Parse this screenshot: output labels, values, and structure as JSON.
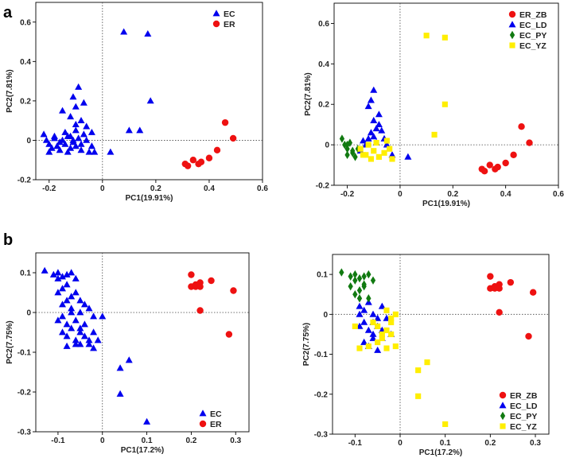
{
  "figure": {
    "panel_letters": [
      "a",
      "b"
    ]
  },
  "colors": {
    "EC": "#0000ee",
    "ER": "#ee1111",
    "EC_PY": "#117a11",
    "EC_YZ": "#ffee00",
    "ER_ZB": "#ee1111",
    "EC_LD": "#0000ee"
  },
  "chart_data": [
    {
      "id": "a-left",
      "type": "scatter",
      "xlabel": "PC1(19.91%)",
      "ylabel": "PC2(7.81%)",
      "xlim": [
        -0.25,
        0.6
      ],
      "ylim": [
        -0.2,
        0.7
      ],
      "xticks": [
        -0.2,
        0,
        0.2,
        0.4,
        0.6
      ],
      "xtick_labels": [
        "-0.2",
        "0",
        "0.2",
        "0.4",
        "0.6"
      ],
      "yticks": [
        -0.2,
        0,
        0.2,
        0.4,
        0.6
      ],
      "ytick_labels": [
        "-0.2",
        "0",
        "0.2",
        "0.4",
        "0.6"
      ],
      "legend": {
        "position": "top-right",
        "entries": [
          {
            "name": "EC",
            "marker": "triangle",
            "color": "#0000ee"
          },
          {
            "name": "ER",
            "marker": "circle",
            "color": "#ee1111"
          }
        ]
      },
      "series": [
        {
          "name": "EC",
          "marker": "triangle",
          "color": "#0000ee",
          "x": [
            -0.22,
            -0.21,
            -0.2,
            -0.19,
            -0.18,
            -0.17,
            -0.16,
            -0.15,
            -0.14,
            -0.13,
            -0.12,
            -0.11,
            -0.1,
            -0.09,
            -0.08,
            -0.07,
            -0.2,
            -0.18,
            -0.16,
            -0.14,
            -0.12,
            -0.1,
            -0.08,
            -0.06,
            -0.05,
            -0.04,
            -0.12,
            -0.1,
            -0.08,
            -0.06,
            -0.04,
            -0.11,
            -0.09,
            -0.07,
            -0.15,
            -0.13,
            -0.11,
            -0.1,
            -0.03,
            0.03,
            0.08,
            0.1,
            0.17,
            0.18,
            0.14
          ],
          "y": [
            0.03,
            0.0,
            -0.02,
            -0.04,
            0.01,
            -0.03,
            -0.05,
            0.0,
            -0.02,
            -0.06,
            0.02,
            0.0,
            -0.03,
            0.01,
            -0.05,
            0.03,
            -0.06,
            0.02,
            -0.01,
            0.04,
            -0.04,
            0.05,
            -0.02,
            0.0,
            -0.06,
            -0.03,
            0.12,
            0.08,
            0.1,
            0.07,
            0.04,
            0.22,
            0.27,
            0.19,
            0.15,
            0.02,
            -0.01,
            0.17,
            -0.06,
            -0.06,
            0.55,
            0.05,
            0.54,
            0.2,
            0.05
          ]
        },
        {
          "name": "ER",
          "marker": "circle",
          "color": "#ee1111",
          "x": [
            0.31,
            0.32,
            0.34,
            0.36,
            0.37,
            0.4,
            0.43,
            0.46,
            0.49
          ],
          "y": [
            -0.12,
            -0.13,
            -0.1,
            -0.12,
            -0.11,
            -0.09,
            -0.05,
            0.09,
            0.01
          ]
        }
      ]
    },
    {
      "id": "a-right",
      "type": "scatter",
      "xlabel": "PC1(19.91%)",
      "ylabel": "PC2(7.81%)",
      "xlim": [
        -0.25,
        0.6
      ],
      "ylim": [
        -0.2,
        0.7
      ],
      "xticks": [
        -0.2,
        0,
        0.2,
        0.4,
        0.6
      ],
      "xtick_labels": [
        "-0.2",
        "0",
        "0.2",
        "0.4",
        "0.6"
      ],
      "yticks": [
        -0.2,
        0,
        0.2,
        0.4,
        0.6
      ],
      "ytick_labels": [
        "-0.2",
        "0",
        "0.2",
        "0.4",
        "0.6"
      ],
      "legend": {
        "position": "top-right",
        "entries": [
          {
            "name": "ER_ZB",
            "marker": "circle",
            "color": "#ee1111"
          },
          {
            "name": "EC_LD",
            "marker": "triangle",
            "color": "#0000ee"
          },
          {
            "name": "EC_PY",
            "marker": "diamond",
            "color": "#117a11"
          },
          {
            "name": "EC_YZ",
            "marker": "square",
            "color": "#ffee00"
          }
        ]
      },
      "series": [
        {
          "name": "ER_ZB",
          "marker": "circle",
          "color": "#ee1111",
          "x": [
            0.31,
            0.32,
            0.34,
            0.36,
            0.37,
            0.4,
            0.43,
            0.46,
            0.49
          ],
          "y": [
            -0.12,
            -0.13,
            -0.1,
            -0.12,
            -0.11,
            -0.09,
            -0.05,
            0.09,
            0.01
          ]
        },
        {
          "name": "EC_LD",
          "marker": "triangle",
          "color": "#0000ee",
          "x": [
            -0.14,
            -0.13,
            -0.12,
            -0.11,
            -0.1,
            -0.1,
            -0.09,
            -0.08,
            -0.07,
            -0.06,
            -0.05,
            -0.12,
            -0.1,
            -0.08,
            -0.15,
            -0.03,
            0.03,
            -0.11,
            -0.09
          ],
          "y": [
            0.02,
            0.0,
            0.03,
            0.06,
            0.04,
            0.12,
            0.08,
            0.1,
            0.07,
            0.03,
            0.0,
            0.19,
            0.27,
            0.15,
            -0.03,
            -0.05,
            -0.06,
            0.22,
            0.01
          ]
        },
        {
          "name": "EC_PY",
          "marker": "diamond",
          "color": "#117a11",
          "x": [
            -0.22,
            -0.21,
            -0.2,
            -0.2,
            -0.19,
            -0.18,
            -0.17,
            -0.16,
            -0.2,
            -0.18
          ],
          "y": [
            0.03,
            0.0,
            -0.02,
            -0.05,
            0.01,
            -0.04,
            -0.06,
            -0.02,
            0.0,
            -0.03
          ]
        },
        {
          "name": "EC_YZ",
          "marker": "square",
          "color": "#ffee00",
          "x": [
            -0.15,
            -0.13,
            -0.12,
            -0.1,
            -0.09,
            -0.08,
            -0.06,
            -0.05,
            -0.04,
            0.1,
            0.17,
            0.17,
            0.13,
            -0.14,
            -0.11,
            -0.03
          ],
          "y": [
            -0.02,
            -0.05,
            0.0,
            -0.03,
            0.01,
            -0.06,
            -0.04,
            0.02,
            -0.02,
            0.54,
            0.53,
            0.2,
            0.05,
            -0.05,
            -0.07,
            -0.07
          ]
        }
      ]
    },
    {
      "id": "b-left",
      "type": "scatter",
      "xlabel": "PC1(17.2%)",
      "ylabel": "PC2(7.75%)",
      "xlim": [
        -0.15,
        0.33
      ],
      "ylim": [
        -0.3,
        0.15
      ],
      "xticks": [
        -0.1,
        0,
        0.1,
        0.2,
        0.3
      ],
      "xtick_labels": [
        "-0.1",
        "0",
        "0.1",
        "0.2",
        "0.3"
      ],
      "yticks": [
        -0.3,
        -0.2,
        -0.1,
        0,
        0.1
      ],
      "ytick_labels": [
        "-0.3",
        "-0.2",
        "-0.1",
        "0",
        "0.1"
      ],
      "legend": {
        "position": "bottom-right",
        "entries": [
          {
            "name": "EC",
            "marker": "triangle",
            "color": "#0000ee"
          },
          {
            "name": "ER",
            "marker": "circle",
            "color": "#ee1111"
          }
        ]
      },
      "series": [
        {
          "name": "EC",
          "marker": "triangle",
          "color": "#0000ee",
          "x": [
            -0.13,
            -0.11,
            -0.1,
            -0.1,
            -0.09,
            -0.08,
            -0.07,
            -0.06,
            -0.1,
            -0.09,
            -0.08,
            -0.07,
            -0.09,
            -0.08,
            -0.07,
            -0.06,
            -0.05,
            -0.05,
            -0.04,
            -0.1,
            -0.09,
            -0.08,
            -0.07,
            -0.06,
            -0.05,
            -0.04,
            -0.03,
            -0.02,
            -0.09,
            -0.08,
            -0.07,
            -0.06,
            -0.05,
            -0.04,
            -0.03,
            -0.02,
            -0.01,
            0.0,
            -0.08,
            -0.06,
            -0.05,
            -0.03,
            -0.02,
            0.04,
            0.06,
            0.04,
            0.1
          ],
          "y": [
            0.105,
            0.095,
            0.085,
            0.1,
            0.09,
            0.095,
            0.1,
            0.085,
            0.05,
            0.06,
            0.07,
            0.04,
            0.02,
            0.03,
            0.01,
            0.05,
            0.0,
            0.03,
            0.02,
            -0.02,
            -0.01,
            -0.03,
            0.0,
            -0.02,
            -0.04,
            -0.03,
            0.01,
            -0.01,
            -0.05,
            -0.06,
            -0.04,
            -0.07,
            -0.05,
            -0.06,
            -0.08,
            -0.05,
            -0.07,
            -0.01,
            -0.085,
            -0.08,
            -0.08,
            -0.07,
            -0.09,
            -0.14,
            -0.12,
            -0.205,
            -0.275
          ]
        },
        {
          "name": "ER",
          "marker": "circle",
          "color": "#ee1111",
          "x": [
            0.2,
            0.2,
            0.21,
            0.21,
            0.22,
            0.22,
            0.245,
            0.22,
            0.295,
            0.285
          ],
          "y": [
            0.095,
            0.065,
            0.07,
            0.065,
            0.075,
            0.065,
            0.08,
            0.005,
            0.055,
            -0.055
          ]
        }
      ]
    },
    {
      "id": "b-right",
      "type": "scatter",
      "xlabel": "PC1(17.2%)",
      "ylabel": "PC2(7.75%)",
      "xlim": [
        -0.15,
        0.33
      ],
      "ylim": [
        -0.3,
        0.15
      ],
      "xticks": [
        -0.1,
        0,
        0.1,
        0.2,
        0.3
      ],
      "xtick_labels": [
        "-0.1",
        "0",
        "0.1",
        "0.2",
        "0.3"
      ],
      "yticks": [
        -0.3,
        -0.2,
        -0.1,
        0,
        0.1
      ],
      "ytick_labels": [
        "-0.3",
        "-0.2",
        "-0.1",
        "0",
        "0.1"
      ],
      "legend": {
        "position": "bottom-right",
        "entries": [
          {
            "name": "ER_ZB",
            "marker": "circle",
            "color": "#ee1111"
          },
          {
            "name": "EC_LD",
            "marker": "triangle",
            "color": "#0000ee"
          },
          {
            "name": "EC_PY",
            "marker": "diamond",
            "color": "#117a11"
          },
          {
            "name": "EC_YZ",
            "marker": "square",
            "color": "#ffee00"
          }
        ]
      },
      "series": [
        {
          "name": "ER_ZB",
          "marker": "circle",
          "color": "#ee1111",
          "x": [
            0.2,
            0.2,
            0.21,
            0.21,
            0.22,
            0.22,
            0.245,
            0.22,
            0.295,
            0.285
          ],
          "y": [
            0.095,
            0.065,
            0.07,
            0.065,
            0.075,
            0.065,
            0.08,
            0.005,
            0.055,
            -0.055
          ]
        },
        {
          "name": "EC_LD",
          "marker": "triangle",
          "color": "#0000ee",
          "x": [
            -0.09,
            -0.08,
            -0.07,
            -0.06,
            -0.05,
            -0.04,
            -0.09,
            -0.08,
            -0.07,
            -0.06,
            -0.05,
            -0.04,
            -0.03,
            -0.08,
            -0.07,
            -0.06,
            -0.05,
            -0.04,
            -0.02,
            -0.09,
            -0.06
          ],
          "y": [
            0.02,
            0.01,
            0.03,
            0.0,
            -0.01,
            0.02,
            -0.03,
            -0.02,
            -0.04,
            -0.05,
            -0.03,
            -0.06,
            -0.01,
            -0.07,
            -0.08,
            -0.06,
            -0.09,
            -0.04,
            -0.05,
            0.0,
            -0.02
          ]
        },
        {
          "name": "EC_PY",
          "marker": "diamond",
          "color": "#117a11",
          "x": [
            -0.13,
            -0.11,
            -0.1,
            -0.1,
            -0.09,
            -0.08,
            -0.07,
            -0.06,
            -0.1,
            -0.09,
            -0.08,
            -0.07,
            -0.11,
            -0.09,
            -0.08
          ],
          "y": [
            0.105,
            0.095,
            0.085,
            0.1,
            0.09,
            0.095,
            0.1,
            0.085,
            0.05,
            0.06,
            0.07,
            0.04,
            0.07,
            0.04,
            0.075
          ]
        },
        {
          "name": "EC_YZ",
          "marker": "square",
          "color": "#ffee00",
          "x": [
            -0.1,
            -0.09,
            -0.07,
            -0.05,
            -0.04,
            -0.03,
            -0.02,
            -0.01,
            -0.03,
            -0.02,
            -0.04,
            -0.03,
            -0.01,
            -0.05,
            -0.06,
            -0.02,
            0.04,
            0.06,
            0.04,
            0.1
          ],
          "y": [
            -0.03,
            -0.085,
            -0.08,
            -0.07,
            -0.05,
            -0.04,
            -0.02,
            0.0,
            0.01,
            -0.01,
            -0.06,
            -0.085,
            -0.08,
            -0.03,
            -0.02,
            -0.05,
            -0.14,
            -0.12,
            -0.205,
            -0.275
          ]
        }
      ]
    }
  ]
}
